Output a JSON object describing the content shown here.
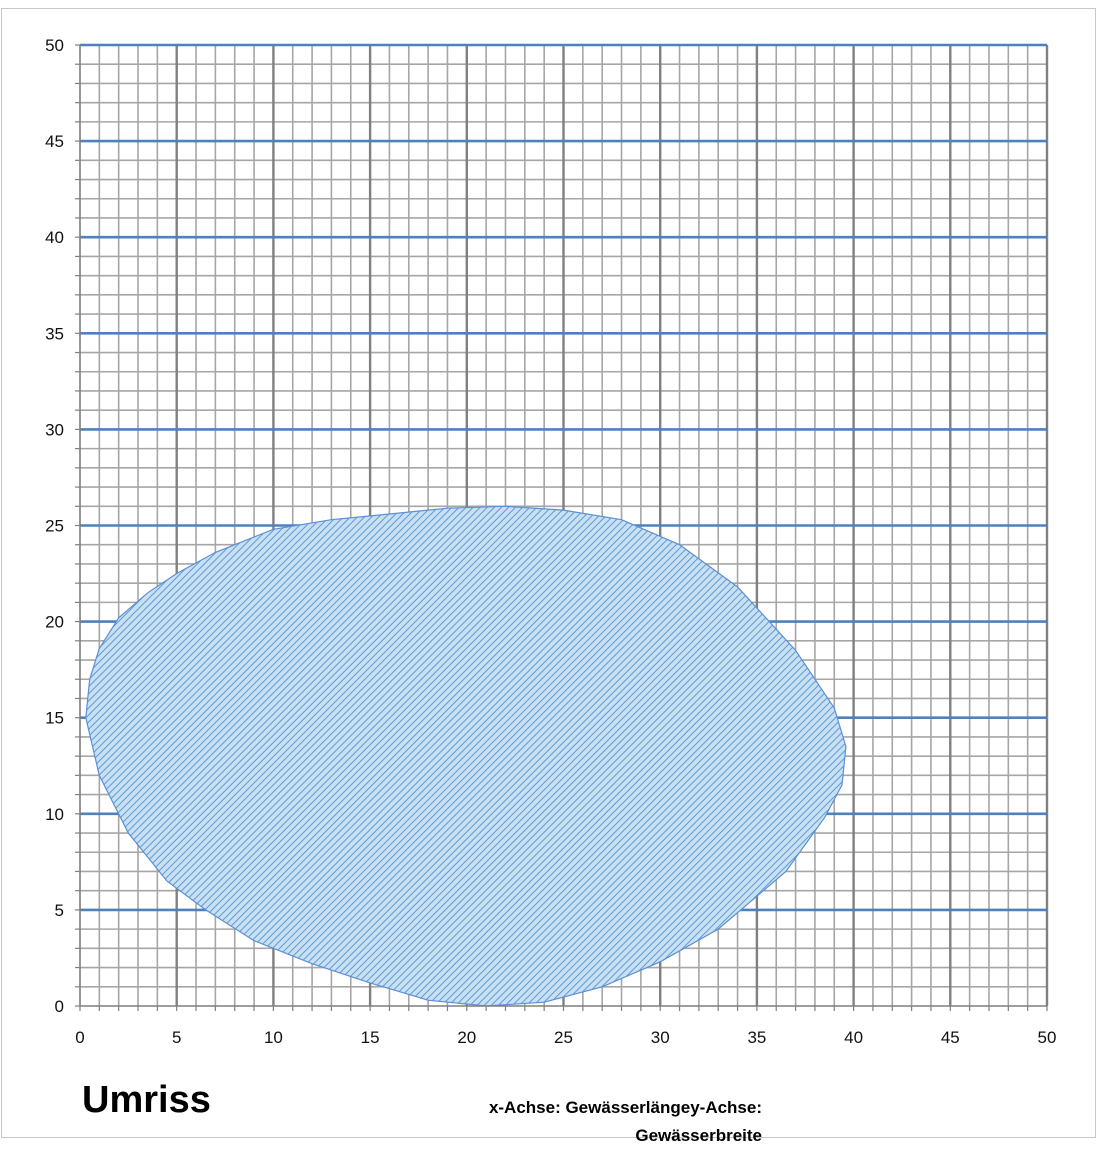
{
  "chart_data": {
    "type": "area",
    "title": "Umriss",
    "axis_caption": "x-Achse: Gewässerlängey-Achse: Gewässerbreite",
    "xlim": [
      0,
      50
    ],
    "ylim": [
      0,
      50
    ],
    "x_ticks": [
      "0",
      "5",
      "10",
      "15",
      "20",
      "25",
      "30",
      "35",
      "40",
      "45",
      "50"
    ],
    "y_ticks": [
      "0",
      "5",
      "10",
      "15",
      "20",
      "25",
      "30",
      "35",
      "40",
      "45",
      "50"
    ],
    "grid": true,
    "minor_grid_step": 1,
    "major_grid_step": 5,
    "colors": {
      "fill": "#9cc3e6",
      "hatch": "#5b9bd5",
      "outline": "#5b8fd6",
      "major_x_grid": "#808080",
      "major_y_grid": "#4f81bd",
      "minor_grid": "#a6a6a6"
    },
    "series": [
      {
        "fill_pattern": "diagonal-hatch",
        "points": [
          [
            0.3,
            15.0
          ],
          [
            0.5,
            17.0
          ],
          [
            1.0,
            18.6
          ],
          [
            2.0,
            20.2
          ],
          [
            3.5,
            21.5
          ],
          [
            5.0,
            22.5
          ],
          [
            7.0,
            23.6
          ],
          [
            10.0,
            24.8
          ],
          [
            13.0,
            25.3
          ],
          [
            16.0,
            25.6
          ],
          [
            19.0,
            25.9
          ],
          [
            22.0,
            26.0
          ],
          [
            25.0,
            25.8
          ],
          [
            28.0,
            25.3
          ],
          [
            31.0,
            24.0
          ],
          [
            34.0,
            21.8
          ],
          [
            37.0,
            18.5
          ],
          [
            39.0,
            15.5
          ],
          [
            39.6,
            13.5
          ],
          [
            39.4,
            11.5
          ],
          [
            38.5,
            9.8
          ],
          [
            36.5,
            7.0
          ],
          [
            33.0,
            4.0
          ],
          [
            30.0,
            2.3
          ],
          [
            27.0,
            1.0
          ],
          [
            24.0,
            0.2
          ],
          [
            21.0,
            0.0
          ],
          [
            18.0,
            0.3
          ],
          [
            15.0,
            1.2
          ],
          [
            12.0,
            2.2
          ],
          [
            9.0,
            3.4
          ],
          [
            6.5,
            5.0
          ],
          [
            4.5,
            6.5
          ],
          [
            2.5,
            9.0
          ],
          [
            1.0,
            12.0
          ],
          [
            0.3,
            15.0
          ]
        ]
      }
    ]
  }
}
